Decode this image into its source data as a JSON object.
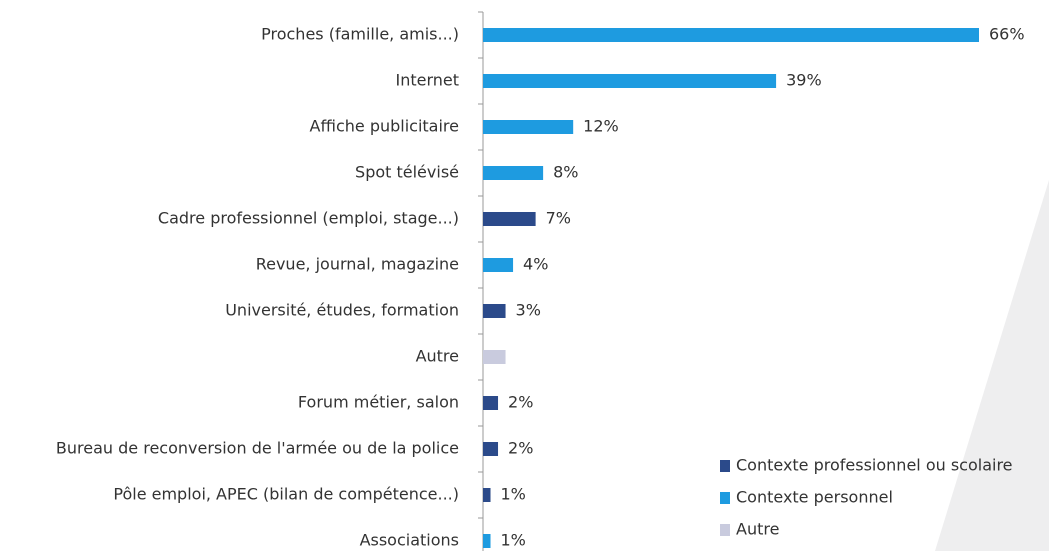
{
  "chart_data": {
    "type": "hbar",
    "categories": [
      "Proches (famille, amis...)",
      "Internet",
      "Affiche publicitaire",
      "Spot télévisé",
      "Cadre professionnel (emploi, stage...)",
      "Revue, journal, magazine",
      "Université, études, formation",
      "Autre",
      "Forum métier, salon",
      "Bureau de reconversion de l'armée ou de la police",
      "Pôle emploi, APEC (bilan de compétence...)",
      "Associations"
    ],
    "series": [
      {
        "name": "Contexte professionnel ou scolaire",
        "color": "#2b4a8a",
        "values": [
          null,
          null,
          null,
          null,
          7,
          null,
          3,
          null,
          2,
          2,
          1,
          null
        ],
        "value_labels": [
          null,
          null,
          null,
          null,
          "7%",
          null,
          "3%",
          null,
          "2%",
          "2%",
          "1%",
          null
        ]
      },
      {
        "name": "Contexte personnel",
        "color": "#1e9be0",
        "values": [
          66,
          39,
          12,
          8,
          null,
          4,
          null,
          null,
          null,
          null,
          null,
          1
        ],
        "value_labels": [
          "66%",
          "39%",
          "12%",
          "8%",
          null,
          "4%",
          null,
          null,
          null,
          null,
          null,
          "1%"
        ]
      },
      {
        "name": "Autre",
        "color": "#c9cbde",
        "values": [
          null,
          null,
          null,
          null,
          null,
          null,
          null,
          3,
          null,
          null,
          null,
          null
        ],
        "value_labels": [
          null,
          null,
          null,
          null,
          null,
          null,
          null,
          null,
          null,
          null,
          null,
          null
        ]
      }
    ],
    "xlim": [
      0,
      66
    ],
    "legend": "bottom-right"
  }
}
